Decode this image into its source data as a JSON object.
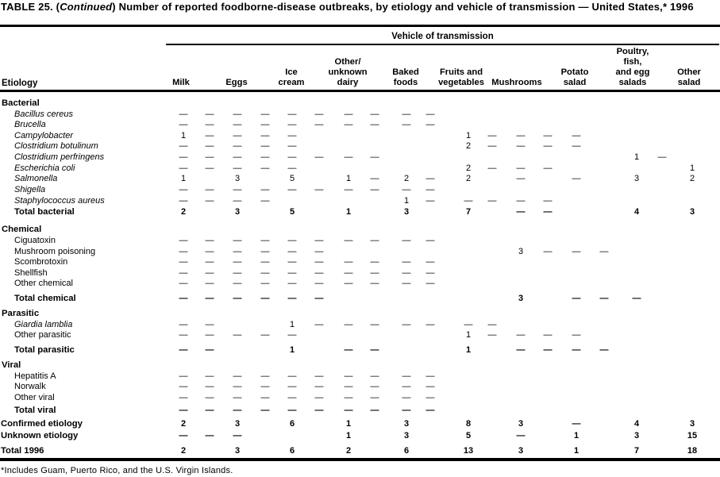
{
  "title": {
    "prefix": "TABLE 25. (",
    "continued": "Continued",
    "rest": ") Number of reported foodborne-disease outbreaks, by etiology and vehicle of transmission — United States,* 1996"
  },
  "header": {
    "spanner": "Vehicle of transmission",
    "etiology_label": "Etiology",
    "columns": [
      {
        "name": "milk",
        "lines": [
          "Milk"
        ]
      },
      {
        "name": "eggs",
        "lines": [
          "Eggs"
        ]
      },
      {
        "name": "ice-cream",
        "lines": [
          "Ice",
          "cream"
        ]
      },
      {
        "name": "other-unknown-dairy",
        "lines": [
          "Other/",
          "unknown",
          "dairy"
        ]
      },
      {
        "name": "baked-foods",
        "lines": [
          "Baked",
          "foods"
        ]
      },
      {
        "name": "fruits-and-vegetables",
        "lines": [
          "Fruits and",
          "vegetables"
        ]
      },
      {
        "name": "mushrooms",
        "lines": [
          "Mushrooms"
        ]
      },
      {
        "name": "potato-salad",
        "lines": [
          "Potato",
          "salad"
        ]
      },
      {
        "name": "poultry-fish-egg-salads",
        "lines": [
          "Poultry,",
          "fish,",
          "and egg",
          "salads"
        ]
      },
      {
        "name": "other-salad",
        "lines": [
          "Other",
          "salad"
        ]
      }
    ]
  },
  "rows": [
    {
      "label": "Bacterial",
      "style": "section",
      "cells": []
    },
    {
      "label": "Bacillus cereus",
      "style": "item-italic",
      "cells": [
        "—",
        "—",
        "—",
        "—",
        "—",
        "—",
        "—",
        "—",
        "—",
        "—",
        "",
        "",
        "",
        "",
        "",
        "",
        "",
        "",
        ""
      ]
    },
    {
      "label": "Brucella",
      "style": "item-italic",
      "cells": [
        "—",
        "—",
        "—",
        "—",
        "—",
        "—",
        "—",
        "—",
        "—",
        "—",
        "",
        "",
        "",
        "",
        "",
        "",
        "",
        "",
        ""
      ]
    },
    {
      "label": "Campylobacter",
      "style": "item-italic",
      "cells": [
        "1",
        "—",
        "—",
        "—",
        "—",
        "",
        "",
        "",
        "",
        "",
        "1",
        "—",
        "—",
        "—",
        "—",
        "",
        "",
        "",
        ""
      ]
    },
    {
      "label": "Clostridium botulinum",
      "style": "item-italic",
      "cells": [
        "—",
        "—",
        "—",
        "—",
        "—",
        "",
        "",
        "",
        "",
        "",
        "2",
        "—",
        "—",
        "—",
        "—",
        "",
        "",
        "",
        ""
      ]
    },
    {
      "label": "Clostridium perfringens",
      "style": "item-italic",
      "cells": [
        "—",
        "—",
        "—",
        "—",
        "—",
        "—",
        "—",
        "—",
        "",
        "",
        "",
        "",
        "",
        "",
        "",
        "",
        "1",
        "—",
        ""
      ]
    },
    {
      "label": "Escherichia coli",
      "style": "item-italic",
      "cells": [
        "—",
        "—",
        "—",
        "—",
        "—",
        "",
        "",
        "",
        "",
        "",
        "2",
        "—",
        "—",
        "—",
        "",
        "",
        "",
        "",
        "1"
      ]
    },
    {
      "label": "Salmonella",
      "style": "item-italic",
      "cells": [
        "1",
        "",
        "3",
        "",
        "5",
        "",
        "1",
        "—",
        "2",
        "—",
        "2",
        "",
        "—",
        "",
        "—",
        "",
        "3",
        "",
        "2"
      ]
    },
    {
      "label": "Shigella",
      "style": "item-italic",
      "cells": [
        "—",
        "—",
        "—",
        "—",
        "—",
        "—",
        "—",
        "—",
        "—",
        "—",
        "",
        "",
        "",
        "",
        "",
        "",
        "",
        "",
        ""
      ]
    },
    {
      "label": "Staphylococcus aureus",
      "style": "item-italic",
      "cells": [
        "—",
        "—",
        "—",
        "—",
        "",
        "",
        "",
        "",
        "1",
        "—",
        "—",
        "—",
        "—",
        "—",
        "",
        "",
        "",
        "",
        ""
      ]
    },
    {
      "label": "Total bacterial",
      "style": "total",
      "cells": [
        "2",
        "",
        "3",
        "",
        "5",
        "",
        "1",
        "",
        "3",
        "",
        "7",
        "",
        "—",
        "—",
        "",
        "",
        "4",
        "",
        "3"
      ]
    },
    {
      "label": "Chemical",
      "style": "section",
      "cells": []
    },
    {
      "label": "Ciguatoxin",
      "style": "item",
      "cells": [
        "—",
        "—",
        "—",
        "—",
        "—",
        "—",
        "—",
        "—",
        "—",
        "—",
        "",
        "",
        "",
        "",
        "",
        "",
        "",
        "",
        ""
      ]
    },
    {
      "label": "Mushroom poisoning",
      "style": "item",
      "cells": [
        "—",
        "—",
        "—",
        "—",
        "—",
        "—",
        "",
        "",
        "",
        "",
        "",
        "",
        "3",
        "—",
        "—",
        "—",
        "",
        "",
        ""
      ]
    },
    {
      "label": "Scombrotoxin",
      "style": "item",
      "cells": [
        "—",
        "—",
        "—",
        "—",
        "—",
        "—",
        "—",
        "—",
        "—",
        "—",
        "",
        "",
        "",
        "",
        "",
        "",
        "",
        "",
        ""
      ]
    },
    {
      "label": "Shellfish",
      "style": "item",
      "cells": [
        "—",
        "—",
        "—",
        "—",
        "—",
        "—",
        "—",
        "—",
        "—",
        "—",
        "",
        "",
        "",
        "",
        "",
        "",
        "",
        "",
        ""
      ]
    },
    {
      "label": "Other chemical",
      "style": "item",
      "cells": [
        "—",
        "—",
        "—",
        "—",
        "—",
        "—",
        "—",
        "—",
        "—",
        "—",
        "",
        "",
        "",
        "",
        "",
        "",
        "",
        "",
        ""
      ]
    },
    {
      "label": "Total chemical",
      "style": "total",
      "cells": [
        "—",
        "—",
        "—",
        "—",
        "—",
        "—",
        "",
        "",
        "",
        "",
        "",
        "",
        "3",
        "",
        "—",
        "—",
        "—",
        "",
        ""
      ]
    },
    {
      "label": "Parasitic",
      "style": "section",
      "cells": []
    },
    {
      "label": "Giardia lamblia",
      "style": "item-italic",
      "cells": [
        "—",
        "—",
        "",
        "",
        "1",
        "—",
        "—",
        "—",
        "—",
        "—",
        "—",
        "—",
        "",
        "",
        "",
        "",
        "",
        "",
        ""
      ]
    },
    {
      "label": "Other parasitic",
      "style": "item",
      "cells": [
        "—",
        "—",
        "—",
        "—",
        "—",
        "",
        "",
        "",
        "",
        "",
        "1",
        "—",
        "—",
        "—",
        "—",
        "",
        "",
        "",
        ""
      ]
    },
    {
      "label": "Total parasitic",
      "style": "total",
      "cells": [
        "—",
        "—",
        "",
        "",
        "1",
        "",
        "—",
        "—",
        "",
        "",
        "1",
        "",
        "—",
        "—",
        "—",
        "—",
        "",
        "",
        ""
      ]
    },
    {
      "label": "Viral",
      "style": "section",
      "cells": []
    },
    {
      "label": "Hepatitis A",
      "style": "item",
      "cells": [
        "—",
        "—",
        "—",
        "—",
        "—",
        "—",
        "—",
        "—",
        "—",
        "—",
        "",
        "",
        "",
        "",
        "",
        "",
        "",
        "",
        ""
      ]
    },
    {
      "label": "Norwalk",
      "style": "item",
      "cells": [
        "—",
        "—",
        "—",
        "—",
        "—",
        "—",
        "—",
        "—",
        "—",
        "—",
        "",
        "",
        "",
        "",
        "",
        "",
        "",
        "",
        ""
      ]
    },
    {
      "label": "Other viral",
      "style": "item",
      "cells": [
        "—",
        "—",
        "—",
        "—",
        "—",
        "—",
        "—",
        "—",
        "—",
        "—",
        "",
        "",
        "",
        "",
        "",
        "",
        "",
        "",
        ""
      ]
    },
    {
      "label": "Total viral",
      "style": "total",
      "cells": [
        "—",
        "—",
        "—",
        "—",
        "—",
        "—",
        "—",
        "—",
        "—",
        "—",
        "",
        "",
        "",
        "",
        "",
        "",
        "",
        "",
        ""
      ]
    },
    {
      "label": "Confirmed etiology",
      "style": "summary",
      "cells": [
        "2",
        "",
        "3",
        "",
        "6",
        "",
        "1",
        "",
        "3",
        "",
        "8",
        "",
        "3",
        "",
        "—",
        "",
        "4",
        "",
        "3"
      ]
    },
    {
      "label": "Unknown etiology",
      "style": "summary",
      "cells": [
        "—",
        "—",
        "—",
        "",
        "",
        "",
        "1",
        "",
        "3",
        "",
        "5",
        "",
        "—",
        "",
        "1",
        "",
        "3",
        "",
        "15"
      ]
    },
    {
      "label": "Total 1996",
      "style": "grand",
      "cells": [
        "2",
        "",
        "3",
        "",
        "6",
        "",
        "2",
        "",
        "6",
        "",
        "13",
        "",
        "3",
        "",
        "1",
        "",
        "7",
        "",
        "18"
      ]
    }
  ],
  "footnote": "*Includes Guam, Puerto Rico, and the U.S. Virgin Islands."
}
